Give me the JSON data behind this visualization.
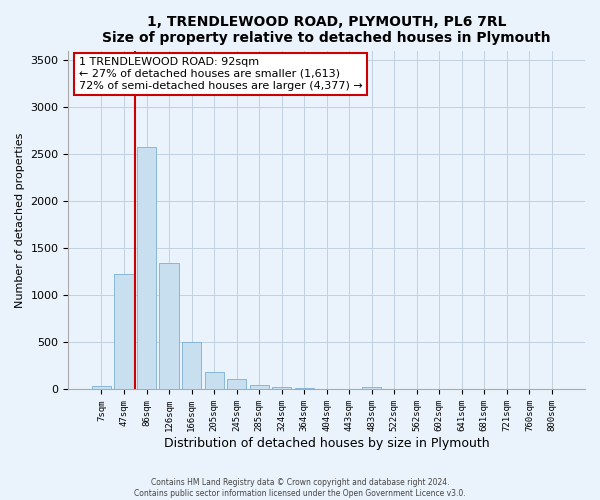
{
  "title1": "1, TRENDLEWOOD ROAD, PLYMOUTH, PL6 7RL",
  "title2": "Size of property relative to detached houses in Plymouth",
  "xlabel": "Distribution of detached houses by size in Plymouth",
  "ylabel": "Number of detached properties",
  "bar_color": "#c8dff0",
  "bar_edge_color": "#7aafd4",
  "vline_color": "#cc0000",
  "categories": [
    "7sqm",
    "47sqm",
    "86sqm",
    "126sqm",
    "166sqm",
    "205sqm",
    "245sqm",
    "285sqm",
    "324sqm",
    "364sqm",
    "404sqm",
    "443sqm",
    "483sqm",
    "522sqm",
    "562sqm",
    "602sqm",
    "641sqm",
    "681sqm",
    "721sqm",
    "760sqm",
    "800sqm"
  ],
  "values": [
    40,
    1230,
    2580,
    1340,
    500,
    190,
    110,
    45,
    30,
    18,
    0,
    0,
    28,
    0,
    0,
    0,
    0,
    0,
    0,
    0,
    0
  ],
  "ylim": [
    0,
    3600
  ],
  "yticks": [
    0,
    500,
    1000,
    1500,
    2000,
    2500,
    3000,
    3500
  ],
  "annotation_title": "1 TRENDLEWOOD ROAD: 92sqm",
  "annotation_line1": "← 27% of detached houses are smaller (1,613)",
  "annotation_line2": "72% of semi-detached houses are larger (4,377) →",
  "footer1": "Contains HM Land Registry data © Crown copyright and database right 2024.",
  "footer2": "Contains public sector information licensed under the Open Government Licence v3.0.",
  "bg_color": "#eaf3fb",
  "plot_bg_color": "#eaf3fb",
  "grid_color": "#c0d0e0"
}
